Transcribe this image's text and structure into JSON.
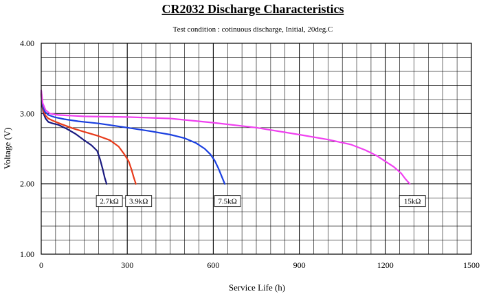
{
  "chart_data": {
    "type": "line",
    "title": "CR2032 Discharge Characteristics",
    "subtitle": "Test condition : cotinuous discharge, Initial, 20deg.C",
    "xlabel": "Service Life (h)",
    "ylabel": "Voltage (V)",
    "xlim": [
      0,
      1500
    ],
    "ylim": [
      1.0,
      4.0
    ],
    "xticks": [
      0,
      300,
      600,
      900,
      1200,
      1500
    ],
    "xtick_labels": [
      "0",
      "300",
      "600",
      "900",
      "1200",
      "1500"
    ],
    "yticks": [
      1.0,
      2.0,
      3.0,
      4.0
    ],
    "ytick_labels": [
      "1.00",
      "2.00",
      "3.00",
      "4.00"
    ],
    "grid": true,
    "series": [
      {
        "name": "2.7kΩ",
        "label": "2.7kΩ",
        "color": "#1a1a80",
        "x": [
          0,
          3,
          8,
          15,
          25,
          40,
          60,
          90,
          120,
          150,
          175,
          195,
          205,
          215,
          222,
          228
        ],
        "y": [
          3.28,
          3.12,
          3.0,
          2.93,
          2.88,
          2.86,
          2.84,
          2.78,
          2.71,
          2.62,
          2.55,
          2.47,
          2.35,
          2.2,
          2.08,
          2.0
        ]
      },
      {
        "name": "3.9kΩ",
        "label": "3.9kΩ",
        "color": "#e83a1a",
        "x": [
          0,
          3,
          8,
          15,
          25,
          40,
          70,
          110,
          150,
          200,
          240,
          270,
          290,
          305,
          315,
          322,
          330
        ],
        "y": [
          3.3,
          3.15,
          3.03,
          2.97,
          2.93,
          2.9,
          2.85,
          2.79,
          2.74,
          2.68,
          2.62,
          2.53,
          2.42,
          2.32,
          2.2,
          2.1,
          2.0
        ]
      },
      {
        "name": "7.5kΩ",
        "label": "7.5kΩ",
        "color": "#1a3fe0",
        "x": [
          0,
          5,
          12,
          25,
          45,
          80,
          130,
          200,
          300,
          380,
          450,
          500,
          540,
          570,
          590,
          605,
          618,
          630,
          640
        ],
        "y": [
          3.32,
          3.12,
          3.03,
          2.98,
          2.95,
          2.92,
          2.89,
          2.86,
          2.8,
          2.75,
          2.7,
          2.65,
          2.58,
          2.5,
          2.42,
          2.33,
          2.22,
          2.1,
          2.0
        ]
      },
      {
        "name": "15kΩ",
        "label": "15kΩ",
        "color": "#f040f0",
        "x": [
          0,
          5,
          15,
          30,
          60,
          150,
          300,
          450,
          600,
          750,
          900,
          1000,
          1080,
          1130,
          1170,
          1200,
          1230,
          1255,
          1270,
          1285
        ],
        "y": [
          3.33,
          3.15,
          3.05,
          3.0,
          2.98,
          2.96,
          2.95,
          2.93,
          2.87,
          2.8,
          2.7,
          2.63,
          2.56,
          2.48,
          2.4,
          2.32,
          2.24,
          2.15,
          2.07,
          2.0
        ]
      }
    ]
  }
}
